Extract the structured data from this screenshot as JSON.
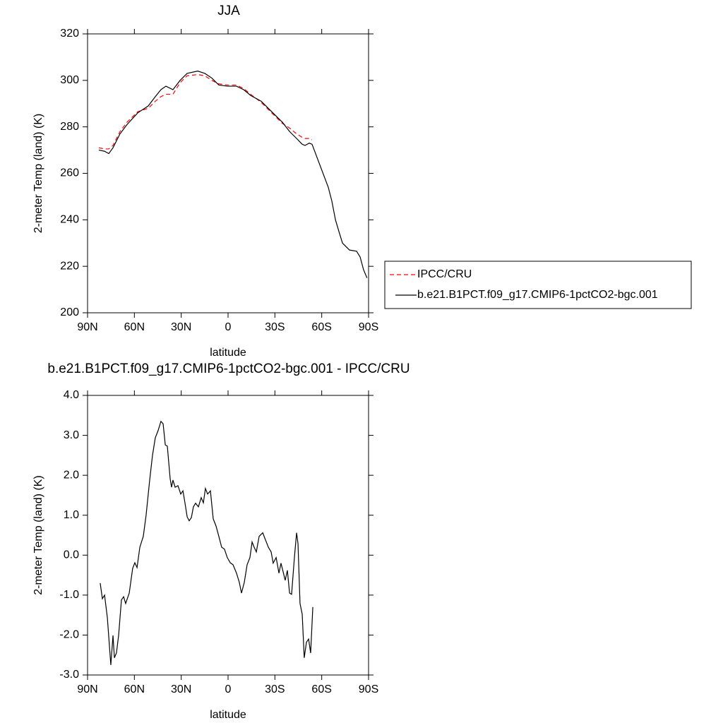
{
  "chart_data": [
    {
      "type": "line",
      "title": "JJA",
      "xlabel": "latitude",
      "ylabel": "2-meter Temp (land) (K)",
      "x": [
        82.8,
        79.1,
        76.4,
        73.7,
        69.2,
        64.7,
        57.9,
        51.1,
        46.6,
        43.0,
        39.8,
        35.3,
        30.7,
        26.2,
        19.4,
        14.9,
        10.4,
        5.9,
        0.4,
        -5.4,
        -10.0,
        -14.5,
        -21.3,
        -28.0,
        -34.8,
        -39.4,
        -43.9,
        -47.5,
        -49.3,
        -52.0,
        -53.8,
        -64.2,
        -66.5,
        -68.8,
        -71.0,
        -73.3,
        -77.8,
        -82.3,
        -84.6,
        -86.8,
        -89.0
      ],
      "series": [
        {
          "name": "IPCC/CRU",
          "color": "#ff0000",
          "dashed": true,
          "values": [
            271,
            270.5,
            270.5,
            272,
            278,
            282,
            286.5,
            288,
            291,
            293,
            294,
            294,
            299,
            302,
            302.5,
            302,
            300,
            298.5,
            298,
            298,
            296.5,
            294,
            290.5,
            286,
            281.5,
            279.5,
            277,
            275.5,
            275,
            275,
            274.5,
            null,
            null,
            null,
            null,
            null,
            null,
            null,
            null,
            null,
            null
          ]
        },
        {
          "name": "b.e21.B1PCT.f09_g17.CMIP6-1pctCO2-bgc.001",
          "color": "#000000",
          "dashed": false,
          "values": [
            270,
            269.5,
            268.5,
            271,
            277,
            281,
            286,
            289,
            293,
            296,
            297.5,
            296,
            300,
            303,
            304,
            303,
            301,
            298,
            297.5,
            297.5,
            296,
            293.5,
            291,
            286.5,
            282,
            278,
            275,
            272.5,
            272,
            273,
            272.5,
            254,
            248,
            240,
            235,
            230,
            227,
            226.5,
            224,
            218.5,
            215
          ]
        }
      ],
      "xlim": [
        90,
        -90
      ],
      "xticks": [
        {
          "value": 90,
          "label": "90N"
        },
        {
          "value": 60,
          "label": "60N"
        },
        {
          "value": 30,
          "label": "30N"
        },
        0,
        {
          "value": -30,
          "label": "30S"
        },
        {
          "value": -60,
          "label": "60S"
        },
        {
          "value": -90,
          "label": "90S"
        }
      ],
      "ylim": [
        200,
        320
      ],
      "yticks": [
        200,
        220,
        240,
        260,
        280,
        300,
        320
      ],
      "legend": "right"
    },
    {
      "type": "line",
      "title": "b.e21.B1PCT.f09_g17.CMIP6-1pctCO2-bgc.001 - IPCC/CRU",
      "xlabel": "latitude",
      "ylabel": "2-meter Temp (land) (K)",
      "x": [
        81.9,
        80.5,
        79.1,
        77.3,
        75.1,
        73.7,
        72.8,
        71.5,
        70.1,
        68.3,
        66.9,
        65.6,
        63.3,
        61.1,
        59.7,
        58.3,
        56.5,
        54.3,
        52.5,
        50.2,
        48.4,
        46.6,
        44.8,
        43.0,
        41.6,
        40.2,
        38.9,
        37.1,
        36.2,
        35.3,
        33.9,
        32.1,
        30.3,
        28.9,
        27.6,
        26.2,
        24.9,
        23.5,
        22.2,
        20.8,
        19.0,
        17.2,
        15.8,
        14.5,
        13.1,
        11.3,
        9.5,
        7.7,
        5.9,
        4.1,
        2.3,
        0.5,
        -1.4,
        -3.2,
        -5.4,
        -7.2,
        -8.6,
        -10.4,
        -12.2,
        -14.0,
        -15.4,
        -16.7,
        -18.1,
        -19.9,
        -22.2,
        -24.0,
        -25.8,
        -27.6,
        -28.9,
        -30.8,
        -32.6,
        -33.9,
        -35.3,
        -36.6,
        -38.0,
        -39.4,
        -40.7,
        -42.5,
        -43.9,
        -44.8,
        -46.1,
        -47.5,
        -48.8,
        -50.2,
        -51.6,
        -52.9,
        -54.3
      ],
      "series": [
        {
          "name": "b.e21.B1PCT.f09_g17.CMIP6-1pctCO2-bgc.001 - IPCC/CRU",
          "color": "#000000",
          "dashed": false,
          "values": [
            -0.7,
            -1.09,
            -1.0,
            -1.57,
            -2.75,
            -2.01,
            -2.57,
            -2.45,
            -2.01,
            -1.12,
            -1.04,
            -1.21,
            -0.95,
            -0.33,
            -0.19,
            -0.31,
            0.2,
            0.47,
            1.0,
            1.88,
            2.5,
            2.94,
            3.12,
            3.35,
            3.29,
            2.76,
            2.73,
            1.92,
            1.7,
            1.88,
            1.7,
            1.74,
            1.53,
            1.61,
            1.31,
            0.96,
            0.86,
            0.94,
            1.21,
            1.3,
            1.21,
            1.44,
            1.31,
            1.67,
            1.53,
            1.61,
            0.91,
            0.73,
            0.47,
            0.2,
            0.15,
            -0.06,
            -0.19,
            -0.24,
            -0.45,
            -0.68,
            -0.95,
            -0.68,
            -0.24,
            -0.06,
            0.33,
            0.2,
            0.08,
            0.47,
            0.56,
            0.38,
            0.2,
            0.08,
            -0.2,
            -0.06,
            -0.45,
            -0.2,
            -0.42,
            -0.63,
            -0.38,
            -0.95,
            -0.98,
            -0.06,
            0.56,
            0.29,
            -1.21,
            -1.48,
            -2.57,
            -2.18,
            -2.1,
            -2.45,
            -1.3
          ]
        }
      ],
      "xlim": [
        90,
        -90
      ],
      "xticks": [
        {
          "value": 90,
          "label": "90N"
        },
        {
          "value": 60,
          "label": "60N"
        },
        {
          "value": 30,
          "label": "30N"
        },
        0,
        {
          "value": -30,
          "label": "30S"
        },
        {
          "value": -60,
          "label": "60S"
        },
        {
          "value": -90,
          "label": "90S"
        }
      ],
      "ylim": [
        -3,
        4
      ],
      "yticks": [
        {
          "value": -3,
          "label": "-3.0"
        },
        {
          "value": -2,
          "label": "-2.0"
        },
        {
          "value": -1,
          "label": "-1.0"
        },
        {
          "value": 0,
          "label": "0.0"
        },
        {
          "value": 1,
          "label": "1.0"
        },
        {
          "value": 2,
          "label": "2.0"
        },
        {
          "value": 3,
          "label": "3.0"
        },
        {
          "value": 4,
          "label": "4.0"
        }
      ]
    }
  ]
}
